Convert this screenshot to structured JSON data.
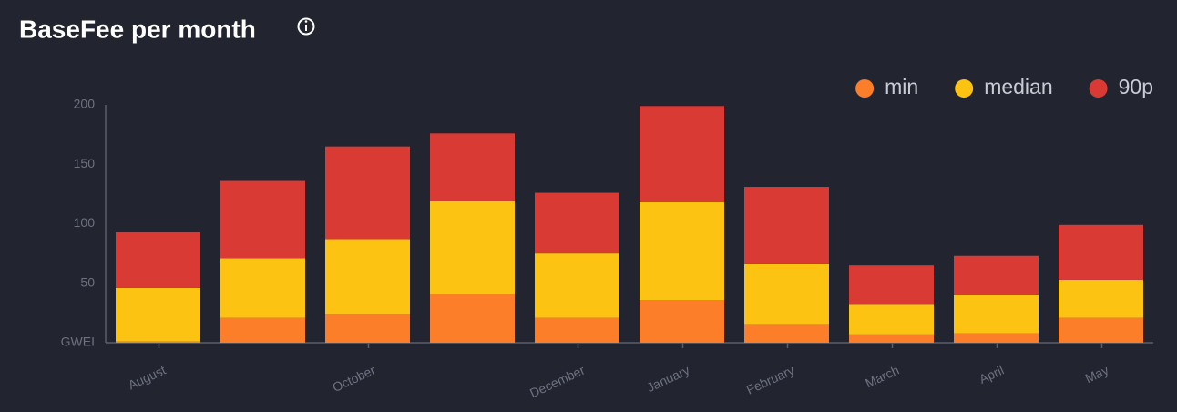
{
  "chart_data": {
    "type": "stacked-bar",
    "title": "BaseFee per month",
    "categories": [
      "August",
      null,
      "October",
      null,
      "December",
      "January",
      "February",
      "March",
      "April",
      "May"
    ],
    "series": [
      {
        "name": "min",
        "color": "#fd7e28",
        "values": [
          1,
          21,
          24,
          41,
          21,
          36,
          15,
          7,
          8,
          21
        ]
      },
      {
        "name": "median",
        "color": "#fcc312",
        "values": [
          45,
          50,
          63,
          78,
          54,
          82,
          51,
          25,
          32,
          32
        ]
      },
      {
        "name": "90p",
        "color": "#da3a34",
        "values": [
          47,
          65,
          78,
          57,
          51,
          81,
          65,
          33,
          33,
          46
        ]
      }
    ],
    "ylim": [
      0,
      200
    ],
    "yticks": [
      {
        "value": 0,
        "label": "GWEI"
      },
      50,
      100,
      150,
      200
    ],
    "legend": "top-right"
  }
}
